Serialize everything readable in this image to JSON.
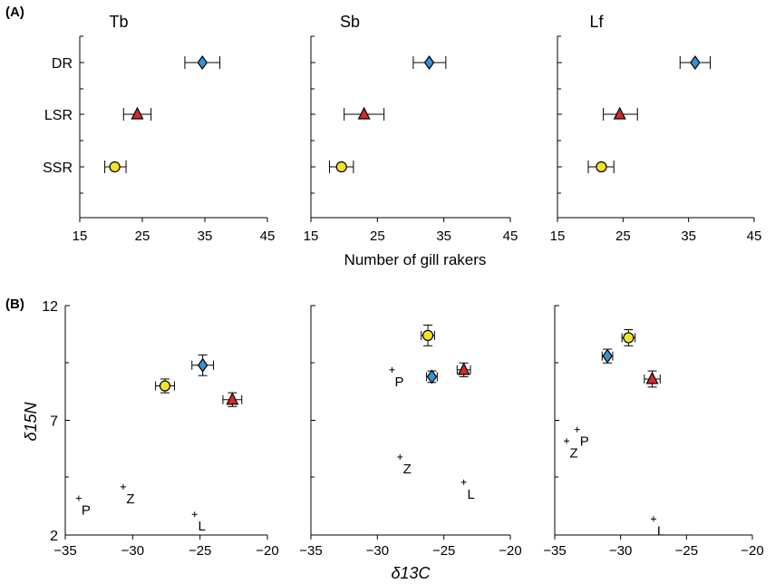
{
  "panel_labels": [
    "(A)",
    "(B)"
  ],
  "chart_data": [
    {
      "type": "scatter",
      "title": "Tb",
      "xlabel": "",
      "ylabel": "",
      "xlim": [
        15,
        45
      ],
      "xticks": [
        15,
        25,
        35,
        45
      ],
      "categories": [
        "DR",
        "LSR",
        "SSR"
      ],
      "series": [
        {
          "name": "DR",
          "x": 34.6,
          "xerr": [
            31.8,
            37.4
          ],
          "y_category": "DR",
          "marker": "diamond",
          "color": "#3a8fd0"
        },
        {
          "name": "LSR",
          "x": 24.2,
          "xerr": [
            22.0,
            26.4
          ],
          "y_category": "LSR",
          "marker": "triangle",
          "color": "#d42a2a"
        },
        {
          "name": "SSR",
          "x": 20.6,
          "xerr": [
            19.0,
            22.4
          ],
          "y_category": "SSR",
          "marker": "circle",
          "color": "#f2e32a"
        }
      ]
    },
    {
      "type": "scatter",
      "title": "Sb",
      "xlabel": "Number of gill rakers",
      "ylabel": "",
      "xlim": [
        15,
        45
      ],
      "xticks": [
        15,
        25,
        35,
        45
      ],
      "categories": [
        "DR",
        "LSR",
        "SSR"
      ],
      "series": [
        {
          "name": "DR",
          "x": 32.8,
          "xerr": [
            30.4,
            35.3
          ],
          "y_category": "DR",
          "marker": "diamond",
          "color": "#3a8fd0"
        },
        {
          "name": "LSR",
          "x": 23.0,
          "xerr": [
            20.0,
            26.0
          ],
          "y_category": "LSR",
          "marker": "triangle",
          "color": "#d42a2a"
        },
        {
          "name": "SSR",
          "x": 19.6,
          "xerr": [
            17.8,
            21.4
          ],
          "y_category": "SSR",
          "marker": "circle",
          "color": "#f2e32a"
        }
      ]
    },
    {
      "type": "scatter",
      "title": "Lf",
      "xlabel": "",
      "ylabel": "",
      "xlim": [
        15,
        45
      ],
      "xticks": [
        15,
        25,
        35,
        45
      ],
      "categories": [
        "DR",
        "LSR",
        "SSR"
      ],
      "series": [
        {
          "name": "DR",
          "x": 36.0,
          "xerr": [
            33.7,
            38.3
          ],
          "y_category": "DR",
          "marker": "diamond",
          "color": "#3a8fd0"
        },
        {
          "name": "LSR",
          "x": 24.5,
          "xerr": [
            22.0,
            27.2
          ],
          "y_category": "LSR",
          "marker": "triangle",
          "color": "#d42a2a"
        },
        {
          "name": "SSR",
          "x": 21.7,
          "xerr": [
            19.7,
            23.6
          ],
          "y_category": "SSR",
          "marker": "circle",
          "color": "#f2e32a"
        }
      ]
    },
    {
      "type": "scatter",
      "title": "",
      "xlabel": "",
      "ylabel": "δ15N",
      "xlim": [
        -35,
        -20
      ],
      "ylim": [
        2,
        12
      ],
      "xticks": [
        -35,
        -30,
        -25,
        -20
      ],
      "yticks": [
        2,
        7,
        12
      ],
      "points": [
        {
          "x": -24.8,
          "y": 9.4,
          "xerr": 0.8,
          "yerr": 0.45,
          "marker": "diamond",
          "color": "#3a8fd0"
        },
        {
          "x": -22.6,
          "y": 7.9,
          "xerr": 0.7,
          "yerr": 0.3,
          "marker": "triangle",
          "color": "#d42a2a"
        },
        {
          "x": -27.6,
          "y": 8.5,
          "xerr": 0.7,
          "yerr": 0.3,
          "marker": "circle",
          "color": "#f2e32a"
        }
      ],
      "prey": [
        {
          "label": "P",
          "x": -34.0,
          "y": 3.6
        },
        {
          "label": "Z",
          "x": -30.7,
          "y": 4.1
        },
        {
          "label": "L",
          "x": -25.4,
          "y": 2.9
        }
      ]
    },
    {
      "type": "scatter",
      "title": "",
      "xlabel": "δ13C",
      "ylabel": "",
      "xlim": [
        -35,
        -20
      ],
      "ylim": [
        2,
        12
      ],
      "xticks": [
        -35,
        -30,
        -25,
        -20
      ],
      "points": [
        {
          "x": -25.9,
          "y": 8.9,
          "xerr": 0.4,
          "yerr": 0.25,
          "marker": "diamond",
          "color": "#3a8fd0"
        },
        {
          "x": -23.5,
          "y": 9.2,
          "xerr": 0.5,
          "yerr": 0.3,
          "marker": "triangle",
          "color": "#d42a2a"
        },
        {
          "x": -26.2,
          "y": 10.7,
          "xerr": 0.5,
          "yerr": 0.45,
          "marker": "circle",
          "color": "#f2e32a"
        }
      ],
      "prey": [
        {
          "label": "P",
          "x": -28.9,
          "y": 9.2
        },
        {
          "label": "Z",
          "x": -28.3,
          "y": 5.4
        },
        {
          "label": "L",
          "x": -23.5,
          "y": 4.3
        }
      ]
    },
    {
      "type": "scatter",
      "title": "",
      "xlabel": "",
      "ylabel": "",
      "xlim": [
        -35,
        -20
      ],
      "ylim": [
        2,
        12
      ],
      "xticks": [
        -35,
        -30,
        -25,
        -20
      ],
      "points": [
        {
          "x": -31.0,
          "y": 9.8,
          "xerr": 0.4,
          "yerr": 0.3,
          "marker": "diamond",
          "color": "#3a8fd0"
        },
        {
          "x": -27.6,
          "y": 8.8,
          "xerr": 0.6,
          "yerr": 0.35,
          "marker": "triangle",
          "color": "#d42a2a"
        },
        {
          "x": -29.4,
          "y": 10.6,
          "xerr": 0.5,
          "yerr": 0.35,
          "marker": "circle",
          "color": "#f2e32a"
        }
      ],
      "prey": [
        {
          "label": "P",
          "x": -33.3,
          "y": 6.6
        },
        {
          "label": "Z",
          "x": -34.1,
          "y": 6.1
        },
        {
          "label": "L",
          "x": -27.5,
          "y": 2.7
        }
      ]
    }
  ]
}
